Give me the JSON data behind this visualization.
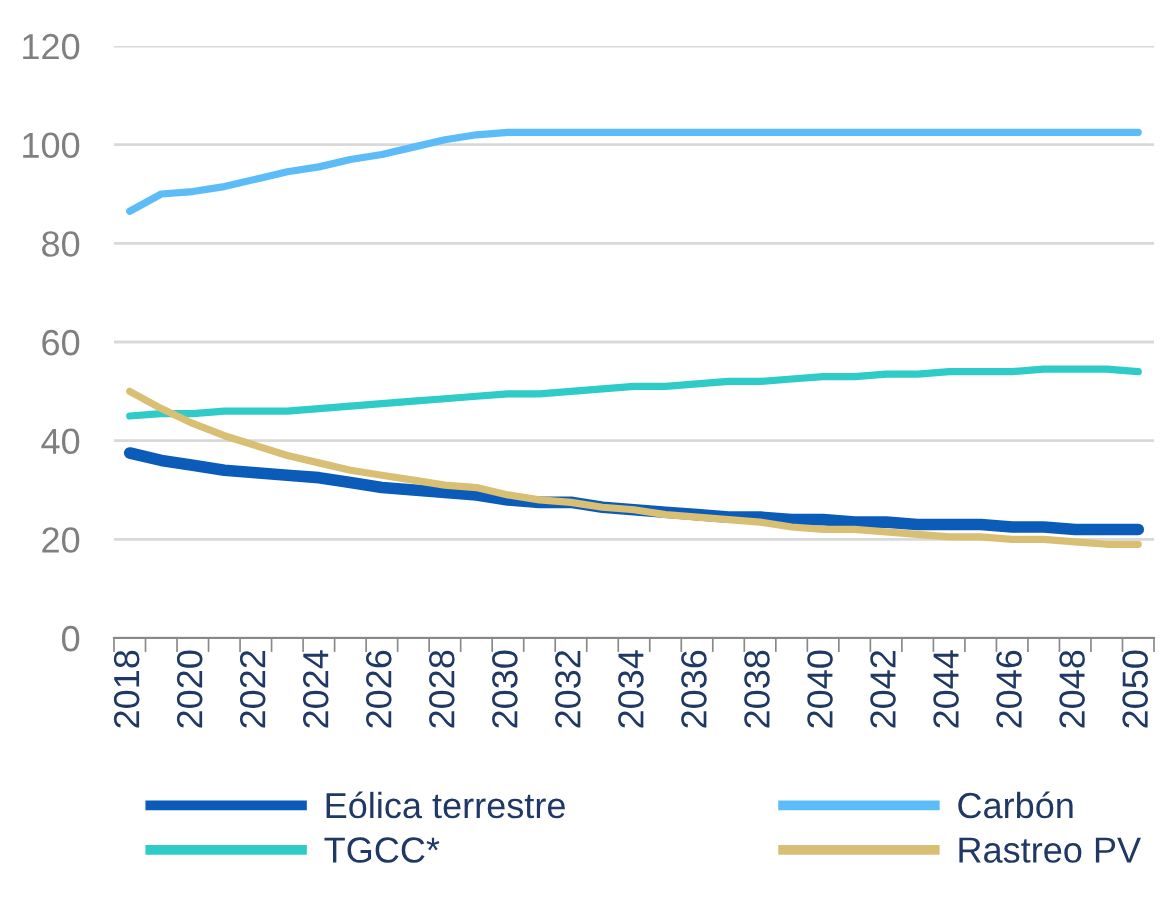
{
  "chart_data": {
    "type": "line",
    "categories": [
      "2018",
      null,
      "2020",
      null,
      "2022",
      null,
      "2024",
      null,
      "2026",
      null,
      "2028",
      null,
      "2030",
      null,
      "2032",
      null,
      "2034",
      null,
      "2036",
      null,
      "2038",
      null,
      "2040",
      null,
      "2042",
      null,
      "2044",
      null,
      "2046",
      null,
      "2048",
      null,
      "2050"
    ],
    "series": [
      {
        "name": "Eólica terrestre",
        "color": "#0b5cb8",
        "values": [
          37.5,
          36,
          35,
          34,
          33.5,
          33,
          32.5,
          31.5,
          30.5,
          30,
          29.5,
          29,
          28,
          27.5,
          27.5,
          26.5,
          26,
          25.5,
          25,
          24.5,
          24.5,
          24,
          24,
          23.5,
          23.5,
          23,
          23,
          23,
          22.5,
          22.5,
          22,
          22,
          22
        ]
      },
      {
        "name": "Carbón",
        "color": "#5bbcf8",
        "values": [
          86.5,
          90,
          90.5,
          91.5,
          93,
          94.5,
          95.5,
          97,
          98,
          99.5,
          101,
          102,
          102.5,
          102.5,
          102.5,
          102.5,
          102.5,
          102.5,
          102.5,
          102.5,
          102.5,
          102.5,
          102.5,
          102.5,
          102.5,
          102.5,
          102.5,
          102.5,
          102.5,
          102.5,
          102.5,
          102.5,
          102.5
        ]
      },
      {
        "name": "TGCC*",
        "color": "#2ecbc8",
        "values": [
          45,
          45.5,
          45.5,
          46,
          46,
          46,
          46.5,
          47,
          47.5,
          48,
          48.5,
          49,
          49.5,
          49.5,
          50,
          50.5,
          51,
          51,
          51.5,
          52,
          52,
          52.5,
          53,
          53,
          53.5,
          53.5,
          54,
          54,
          54,
          54.5,
          54.5,
          54.5,
          54
        ]
      },
      {
        "name": "Rastreo PV",
        "color": "#d8bf74",
        "values": [
          50,
          46.5,
          43.5,
          41,
          39,
          37,
          35.5,
          34,
          33,
          32,
          31,
          30.5,
          29,
          28,
          27.5,
          26.5,
          26,
          25,
          24.5,
          24,
          23.5,
          22.5,
          22,
          22,
          21.5,
          21,
          20.5,
          20.5,
          20,
          20,
          19.5,
          19,
          19
        ]
      }
    ],
    "ylim": [
      0,
      120
    ],
    "yticks": [
      0,
      20,
      40,
      60,
      80,
      100,
      120
    ],
    "grid": "y",
    "legend": "bottom",
    "marker": "none",
    "line_style": "solid"
  }
}
